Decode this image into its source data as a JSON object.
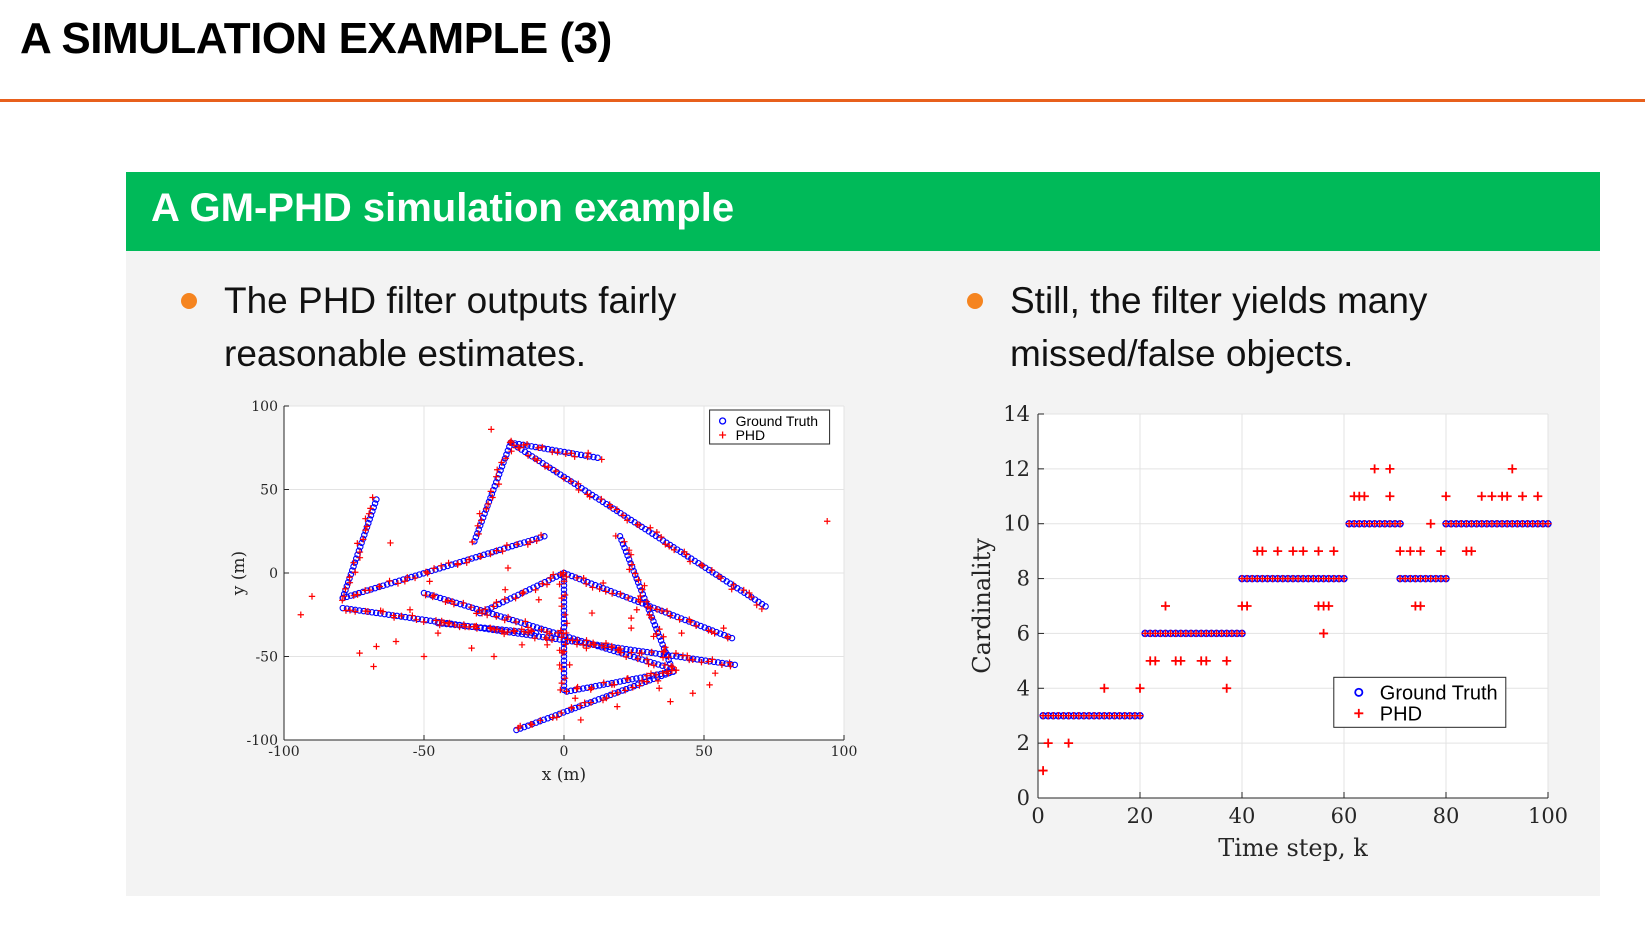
{
  "slide": {
    "title": "A SIMULATION EXAMPLE (3)",
    "block_title": "A GM-PHD simulation example",
    "bullet_left": [
      "The PHD filter outputs fairly",
      "reasonable estimates."
    ],
    "bullet_right": [
      "Still, the filter yields many",
      "missed/false objects."
    ]
  },
  "colors": {
    "rule": "#e8601c",
    "block_header": "#00ba59",
    "block_body": "#f3f3f3",
    "bullet": "#f5841f",
    "ground_truth": "#0000ff",
    "phd": "#ff0000"
  },
  "chart_data": [
    {
      "type": "scatter",
      "xlabel": "x (m)",
      "ylabel": "y (m)",
      "xlim": [
        -100,
        100
      ],
      "ylim": [
        -100,
        100
      ],
      "xticks": [
        -100,
        -50,
        0,
        50,
        100
      ],
      "yticks": [
        -100,
        -50,
        0,
        50,
        100
      ],
      "grid": true,
      "legend_position": "top-right",
      "legend": [
        "Ground Truth",
        "PHD"
      ],
      "ground_truth_tracks": [
        {
          "from": [
            -19,
            78
          ],
          "to": [
            12,
            69
          ]
        },
        {
          "from": [
            -19,
            78
          ],
          "to": [
            72,
            -20
          ]
        },
        {
          "from": [
            -19,
            78
          ],
          "to": [
            -32,
            19
          ]
        },
        {
          "from": [
            -67,
            44
          ],
          "to": [
            -79,
            -15
          ]
        },
        {
          "from": [
            -79,
            -15
          ],
          "to": [
            -7,
            22
          ]
        },
        {
          "from": [
            -79,
            -21
          ],
          "to": [
            61,
            -55
          ]
        },
        {
          "from": [
            0,
            0
          ],
          "to": [
            60,
            -39
          ]
        },
        {
          "from": [
            0,
            0
          ],
          "to": [
            -30,
            -24
          ]
        },
        {
          "from": [
            0,
            0
          ],
          "to": [
            0,
            -70
          ]
        },
        {
          "from": [
            20,
            22
          ],
          "to": [
            39,
            -59
          ]
        },
        {
          "from": [
            39,
            -59
          ],
          "to": [
            -17,
            -94
          ]
        },
        {
          "from": [
            39,
            -59
          ],
          "to": [
            1,
            -71
          ]
        },
        {
          "from": [
            -50,
            -12
          ],
          "to": [
            38,
            -57
          ]
        },
        {
          "from": [
            -45,
            -30
          ],
          "to": [
            -10,
            -36
          ]
        }
      ],
      "phd_clutter": [
        [
          -94,
          -25
        ],
        [
          -90,
          -14
        ],
        [
          -73,
          -48
        ],
        [
          -67,
          -44
        ],
        [
          -60,
          -41
        ],
        [
          -50,
          -50
        ],
        [
          -45,
          -36
        ],
        [
          -40,
          -17
        ],
        [
          -33,
          -45
        ],
        [
          -25,
          -50
        ],
        [
          -21,
          -10
        ],
        [
          -15,
          -43
        ],
        [
          -9,
          -16
        ],
        [
          -6,
          -43
        ],
        [
          0,
          -47
        ],
        [
          2,
          -55
        ],
        [
          4,
          -75
        ],
        [
          8,
          -45
        ],
        [
          10,
          -24
        ],
        [
          14,
          -6
        ],
        [
          15,
          -42
        ],
        [
          19,
          -80
        ],
        [
          24,
          -27
        ],
        [
          26,
          -22
        ],
        [
          28,
          -10
        ],
        [
          32,
          -38
        ],
        [
          34,
          -69
        ],
        [
          38,
          -77
        ],
        [
          42,
          -36
        ],
        [
          46,
          -52
        ],
        [
          52,
          -67
        ],
        [
          54,
          -60
        ],
        [
          57,
          -33
        ],
        [
          94,
          31
        ],
        [
          -26,
          86
        ],
        [
          -48,
          -5
        ],
        [
          6,
          -88
        ],
        [
          -55,
          -22
        ],
        [
          -38,
          5
        ],
        [
          -20,
          3
        ],
        [
          -62,
          18
        ],
        [
          -68,
          -56
        ],
        [
          24,
          -33
        ],
        [
          46,
          -72
        ]
      ]
    },
    {
      "type": "scatter",
      "xlabel": "Time step, k",
      "ylabel": "Cardinality",
      "xlim": [
        0,
        100
      ],
      "ylim": [
        0,
        14
      ],
      "xticks": [
        0,
        20,
        40,
        60,
        80,
        100
      ],
      "yticks": [
        0,
        2,
        4,
        6,
        8,
        10,
        12,
        14
      ],
      "grid": true,
      "legend_position": "bottom-right",
      "legend": [
        "Ground Truth",
        "PHD"
      ],
      "ground_truth_segments": [
        {
          "k": [
            1,
            20
          ],
          "value": 3
        },
        {
          "k": [
            21,
            40
          ],
          "value": 6
        },
        {
          "k": [
            40,
            60
          ],
          "value": 8
        },
        {
          "k": [
            61,
            71
          ],
          "value": 10
        },
        {
          "k": [
            71,
            80
          ],
          "value": 8
        },
        {
          "k": [
            80,
            100
          ],
          "value": 10
        }
      ],
      "phd_points": [
        [
          1,
          1
        ],
        [
          2,
          2
        ],
        [
          6,
          2
        ],
        [
          13,
          4
        ],
        [
          20,
          4
        ],
        [
          25,
          7
        ],
        [
          22,
          5
        ],
        [
          23,
          5
        ],
        [
          27,
          5
        ],
        [
          28,
          5
        ],
        [
          32,
          5
        ],
        [
          33,
          5
        ],
        [
          37,
          5
        ],
        [
          37,
          4
        ],
        [
          40,
          7
        ],
        [
          41,
          7
        ],
        [
          43,
          9
        ],
        [
          44,
          9
        ],
        [
          47,
          9
        ],
        [
          50,
          9
        ],
        [
          52,
          9
        ],
        [
          55,
          9
        ],
        [
          58,
          9
        ],
        [
          55,
          7
        ],
        [
          56,
          7
        ],
        [
          57,
          7
        ],
        [
          56,
          6
        ],
        [
          62,
          11
        ],
        [
          63,
          11
        ],
        [
          64,
          11
        ],
        [
          66,
          12
        ],
        [
          69,
          12
        ],
        [
          69,
          11
        ],
        [
          71,
          9
        ],
        [
          73,
          9
        ],
        [
          75,
          9
        ],
        [
          74,
          7
        ],
        [
          75,
          7
        ],
        [
          77,
          10
        ],
        [
          79,
          9
        ],
        [
          80,
          11
        ],
        [
          84,
          9
        ],
        [
          85,
          9
        ],
        [
          87,
          11
        ],
        [
          89,
          11
        ],
        [
          91,
          11
        ],
        [
          92,
          11
        ],
        [
          93,
          12
        ],
        [
          95,
          11
        ],
        [
          98,
          11
        ]
      ]
    }
  ]
}
